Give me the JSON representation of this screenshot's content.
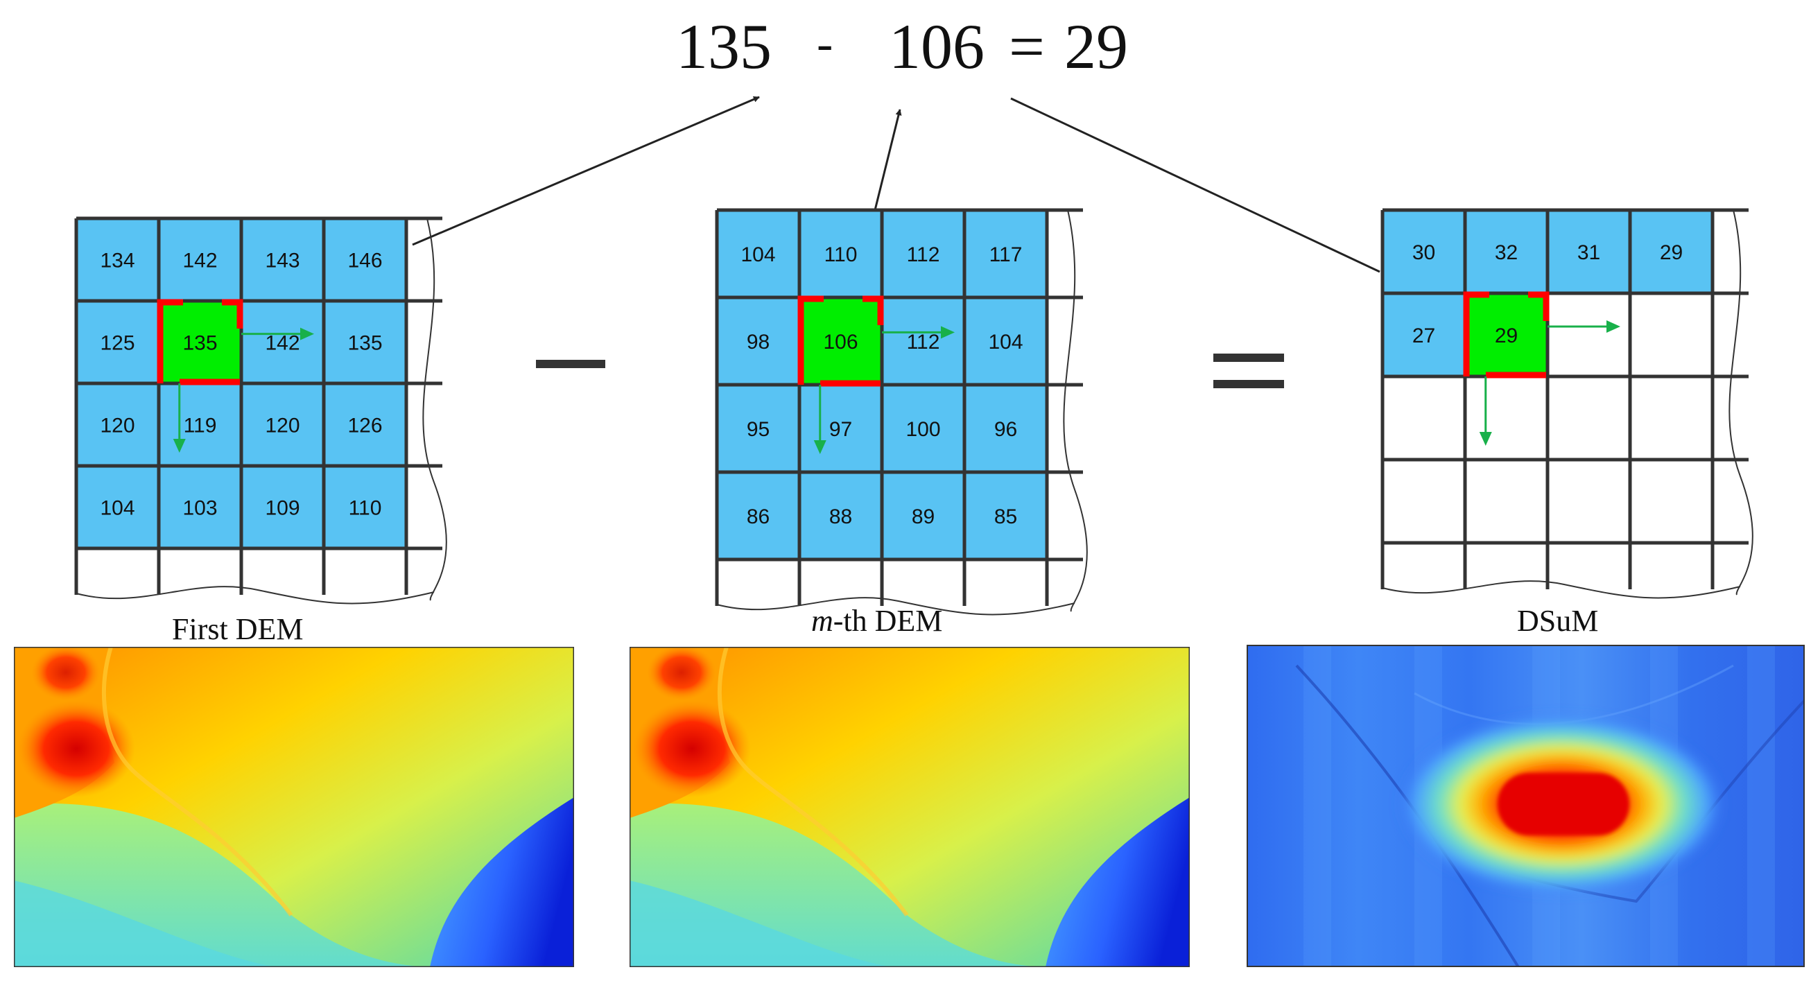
{
  "equation": {
    "a": "135",
    "minus": "-",
    "b": "106",
    "equals": "=",
    "result": "29"
  },
  "operators": {
    "minus": "minus",
    "equals": "equals"
  },
  "colors": {
    "cell_fill": "#59c3f3",
    "highlight_fill": "#00ee00",
    "grid_line": "#333333",
    "highlight_bracket": "#ff0000",
    "direction_arrow": "#18b04a",
    "connector_arrow": "#222222"
  },
  "grids": [
    {
      "caption": "First DEM",
      "values": [
        [
          "134",
          "142",
          "143",
          "146"
        ],
        [
          "125",
          "135",
          "142",
          "135"
        ],
        [
          "120",
          "119",
          "120",
          "126"
        ],
        [
          "104",
          "103",
          "109",
          "110"
        ]
      ],
      "highlight": [
        1,
        1
      ]
    },
    {
      "caption_italic": "m",
      "caption_rest": "-th DEM",
      "values": [
        [
          "104",
          "110",
          "112",
          "117"
        ],
        [
          "98",
          "106",
          "112",
          "104"
        ],
        [
          "95",
          "97",
          "100",
          "96"
        ],
        [
          "86",
          "88",
          "89",
          "85"
        ]
      ],
      "highlight": [
        1,
        1
      ]
    },
    {
      "caption": "DSuM",
      "values": [
        [
          "30",
          "32",
          "31",
          "29"
        ],
        [
          "27",
          "29",
          "",
          ""
        ],
        [
          "",
          "",
          "",
          ""
        ],
        [
          "",
          "",
          "",
          ""
        ]
      ],
      "highlight": [
        1,
        1
      ]
    }
  ],
  "heatmaps": [
    {
      "name": "first-dem-heatmap",
      "colormap": "jet",
      "content": "elevation map"
    },
    {
      "name": "mth-dem-heatmap",
      "colormap": "jet",
      "content": "elevation map"
    },
    {
      "name": "dsum-heatmap",
      "colormap": "jet",
      "content": "difference map"
    }
  ]
}
